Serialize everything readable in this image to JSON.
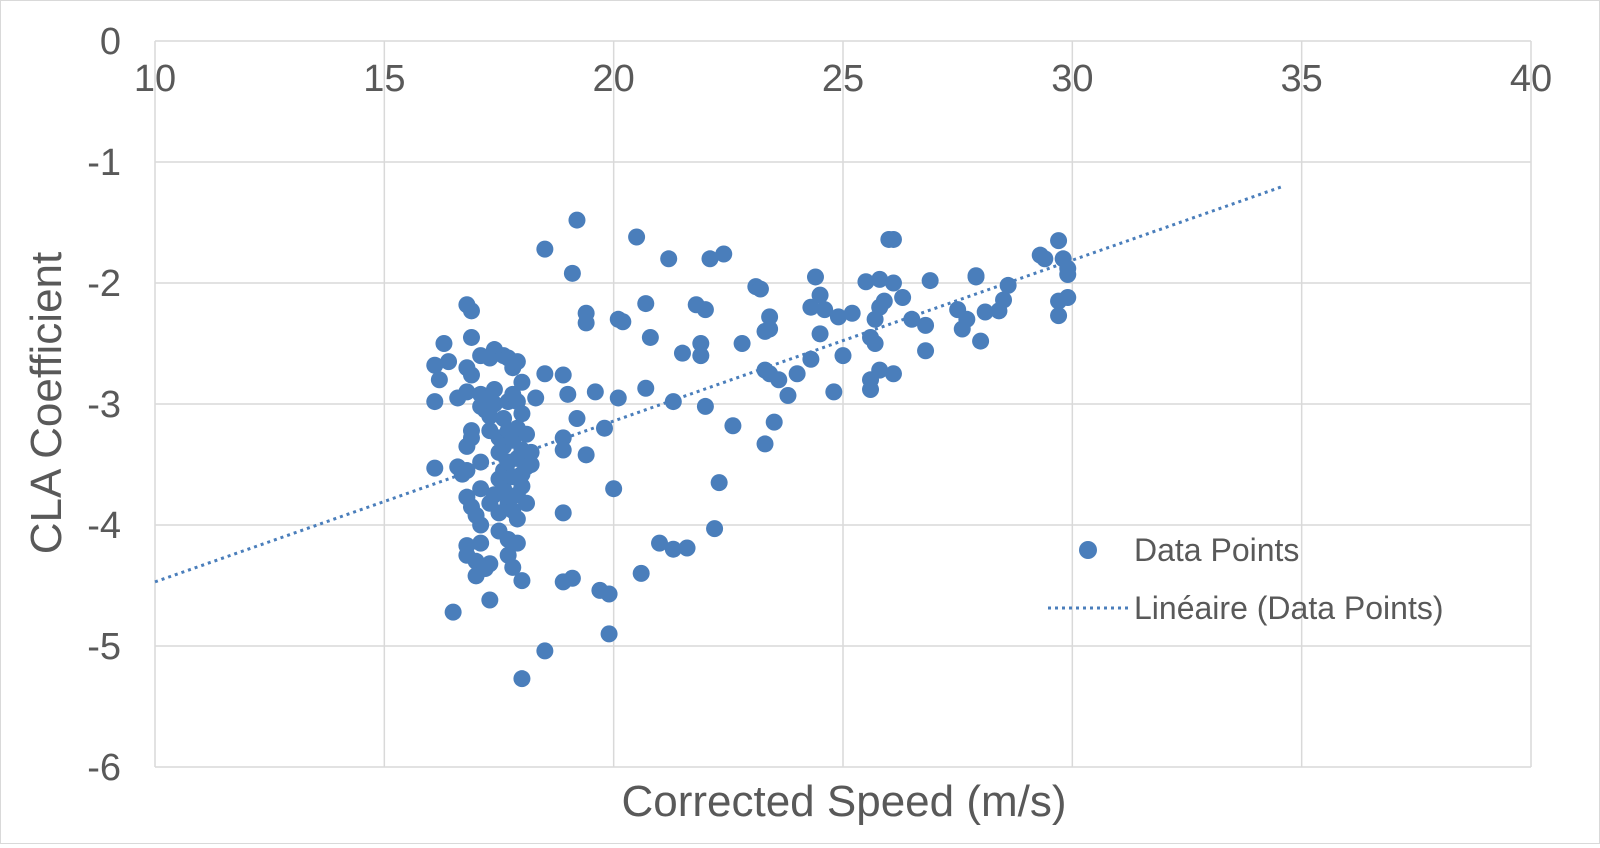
{
  "chart_data": {
    "type": "scatter",
    "xlabel": "Corrected Speed (m/s)",
    "ylabel": "CLA Coefficient",
    "xlim": [
      10,
      40
    ],
    "ylim": [
      -6,
      0
    ],
    "xticks": [
      "10",
      "15",
      "20",
      "25",
      "30",
      "35",
      "40"
    ],
    "yticks": [
      "0",
      "-1",
      "-2",
      "-3",
      "-4",
      "-5",
      "-6"
    ],
    "grid": true,
    "legend_position": "right",
    "colors": {
      "points": "#4a7ebb",
      "trendline": "#4a7ebb",
      "grid": "#d9d9d9"
    },
    "series": [
      {
        "name": "Data Points",
        "points": [
          [
            16.1,
            -2.68
          ],
          [
            16.2,
            -2.8
          ],
          [
            16.1,
            -2.98
          ],
          [
            16.3,
            -2.5
          ],
          [
            16.4,
            -2.65
          ],
          [
            16.1,
            -3.53
          ],
          [
            16.5,
            -4.72
          ],
          [
            16.6,
            -2.95
          ],
          [
            16.6,
            -3.52
          ],
          [
            16.7,
            -3.58
          ],
          [
            16.8,
            -2.18
          ],
          [
            16.9,
            -2.23
          ],
          [
            16.9,
            -2.45
          ],
          [
            16.8,
            -2.7
          ],
          [
            16.9,
            -2.76
          ],
          [
            16.8,
            -2.9
          ],
          [
            16.8,
            -3.35
          ],
          [
            16.9,
            -3.28
          ],
          [
            16.9,
            -3.22
          ],
          [
            16.8,
            -3.55
          ],
          [
            16.8,
            -3.77
          ],
          [
            16.9,
            -3.85
          ],
          [
            16.8,
            -4.17
          ],
          [
            16.8,
            -4.25
          ],
          [
            17.0,
            -4.3
          ],
          [
            17.0,
            -4.42
          ],
          [
            17.1,
            -2.6
          ],
          [
            17.1,
            -2.92
          ],
          [
            17.1,
            -3.02
          ],
          [
            17.1,
            -3.48
          ],
          [
            17.1,
            -3.7
          ],
          [
            17.0,
            -3.92
          ],
          [
            17.1,
            -4.0
          ],
          [
            17.1,
            -4.15
          ],
          [
            17.2,
            -4.36
          ],
          [
            17.2,
            -3.05
          ],
          [
            17.3,
            -2.62
          ],
          [
            17.3,
            -2.95
          ],
          [
            17.3,
            -3.1
          ],
          [
            17.3,
            -3.22
          ],
          [
            17.3,
            -3.82
          ],
          [
            17.3,
            -4.32
          ],
          [
            17.3,
            -4.62
          ],
          [
            17.4,
            -2.55
          ],
          [
            17.4,
            -2.88
          ],
          [
            17.4,
            -3.0
          ],
          [
            17.4,
            -3.75
          ],
          [
            17.5,
            -3.28
          ],
          [
            17.5,
            -3.4
          ],
          [
            17.5,
            -3.62
          ],
          [
            17.5,
            -3.9
          ],
          [
            17.5,
            -4.05
          ],
          [
            17.6,
            -2.6
          ],
          [
            17.6,
            -3.12
          ],
          [
            17.6,
            -3.35
          ],
          [
            17.6,
            -3.55
          ],
          [
            17.6,
            -3.7
          ],
          [
            17.7,
            -2.62
          ],
          [
            17.7,
            -2.98
          ],
          [
            17.7,
            -3.22
          ],
          [
            17.7,
            -3.48
          ],
          [
            17.7,
            -3.82
          ],
          [
            17.7,
            -4.12
          ],
          [
            17.7,
            -4.25
          ],
          [
            17.8,
            -2.7
          ],
          [
            17.8,
            -2.92
          ],
          [
            17.8,
            -3.3
          ],
          [
            17.8,
            -3.6
          ],
          [
            17.8,
            -3.88
          ],
          [
            17.8,
            -4.35
          ],
          [
            17.9,
            -2.65
          ],
          [
            17.9,
            -2.98
          ],
          [
            17.9,
            -3.2
          ],
          [
            17.9,
            -3.45
          ],
          [
            17.9,
            -3.75
          ],
          [
            17.9,
            -3.95
          ],
          [
            17.9,
            -4.15
          ],
          [
            18.0,
            -2.82
          ],
          [
            18.0,
            -3.08
          ],
          [
            18.0,
            -3.38
          ],
          [
            18.0,
            -3.58
          ],
          [
            18.0,
            -3.68
          ],
          [
            18.0,
            -4.46
          ],
          [
            18.0,
            -5.27
          ],
          [
            18.1,
            -3.25
          ],
          [
            18.1,
            -3.52
          ],
          [
            18.1,
            -3.82
          ],
          [
            18.2,
            -3.4
          ],
          [
            18.2,
            -3.5
          ],
          [
            18.3,
            -2.95
          ],
          [
            18.5,
            -1.72
          ],
          [
            18.5,
            -2.75
          ],
          [
            18.5,
            -5.04
          ],
          [
            18.9,
            -2.76
          ],
          [
            18.9,
            -3.28
          ],
          [
            18.9,
            -3.38
          ],
          [
            18.9,
            -3.9
          ],
          [
            18.9,
            -4.47
          ],
          [
            19.0,
            -2.92
          ],
          [
            19.1,
            -1.92
          ],
          [
            19.1,
            -4.44
          ],
          [
            19.2,
            -1.48
          ],
          [
            19.2,
            -3.12
          ],
          [
            19.4,
            -2.25
          ],
          [
            19.4,
            -2.33
          ],
          [
            19.4,
            -3.42
          ],
          [
            19.6,
            -2.9
          ],
          [
            19.7,
            -4.54
          ],
          [
            19.8,
            -3.2
          ],
          [
            19.9,
            -4.57
          ],
          [
            19.9,
            -4.9
          ],
          [
            20.0,
            -3.7
          ],
          [
            20.1,
            -2.3
          ],
          [
            20.1,
            -2.95
          ],
          [
            20.2,
            -2.32
          ],
          [
            20.5,
            -1.62
          ],
          [
            20.6,
            -4.4
          ],
          [
            20.7,
            -2.17
          ],
          [
            20.7,
            -2.87
          ],
          [
            20.8,
            -2.45
          ],
          [
            21.0,
            -4.15
          ],
          [
            21.2,
            -1.8
          ],
          [
            21.3,
            -2.98
          ],
          [
            21.3,
            -4.2
          ],
          [
            21.5,
            -2.58
          ],
          [
            21.6,
            -4.19
          ],
          [
            21.8,
            -2.18
          ],
          [
            21.9,
            -2.5
          ],
          [
            21.9,
            -2.6
          ],
          [
            22.0,
            -3.02
          ],
          [
            22.0,
            -2.22
          ],
          [
            22.1,
            -1.8
          ],
          [
            22.2,
            -4.03
          ],
          [
            22.3,
            -3.65
          ],
          [
            22.4,
            -1.76
          ],
          [
            22.6,
            -3.18
          ],
          [
            22.8,
            -2.5
          ],
          [
            23.1,
            -2.03
          ],
          [
            23.2,
            -2.05
          ],
          [
            23.3,
            -2.4
          ],
          [
            23.3,
            -2.72
          ],
          [
            23.3,
            -3.33
          ],
          [
            23.4,
            -2.28
          ],
          [
            23.4,
            -2.38
          ],
          [
            23.4,
            -2.75
          ],
          [
            23.5,
            -3.15
          ],
          [
            23.6,
            -2.8
          ],
          [
            23.8,
            -2.93
          ],
          [
            24.0,
            -2.75
          ],
          [
            24.3,
            -2.2
          ],
          [
            24.3,
            -2.63
          ],
          [
            24.4,
            -1.95
          ],
          [
            24.5,
            -2.1
          ],
          [
            24.5,
            -2.42
          ],
          [
            24.6,
            -2.22
          ],
          [
            24.8,
            -2.9
          ],
          [
            24.9,
            -2.28
          ],
          [
            25.0,
            -2.6
          ],
          [
            25.2,
            -2.25
          ],
          [
            25.5,
            -1.99
          ],
          [
            25.6,
            -2.45
          ],
          [
            25.6,
            -2.8
          ],
          [
            25.6,
            -2.88
          ],
          [
            25.7,
            -2.5
          ],
          [
            25.7,
            -2.3
          ],
          [
            25.8,
            -1.97
          ],
          [
            25.8,
            -2.2
          ],
          [
            25.9,
            -2.15
          ],
          [
            25.8,
            -2.72
          ],
          [
            26.0,
            -1.64
          ],
          [
            26.1,
            -1.64
          ],
          [
            26.1,
            -2.0
          ],
          [
            26.1,
            -2.75
          ],
          [
            26.3,
            -2.12
          ],
          [
            26.5,
            -2.3
          ],
          [
            26.8,
            -2.35
          ],
          [
            26.8,
            -2.56
          ],
          [
            26.9,
            -1.98
          ],
          [
            27.5,
            -2.22
          ],
          [
            27.6,
            -2.38
          ],
          [
            27.7,
            -2.3
          ],
          [
            27.9,
            -1.94
          ],
          [
            27.9,
            -1.95
          ],
          [
            28.0,
            -2.48
          ],
          [
            28.1,
            -2.24
          ],
          [
            28.4,
            -2.23
          ],
          [
            28.5,
            -2.14
          ],
          [
            28.6,
            -2.02
          ],
          [
            29.3,
            -1.77
          ],
          [
            29.4,
            -1.8
          ],
          [
            29.7,
            -1.65
          ],
          [
            29.7,
            -2.15
          ],
          [
            29.7,
            -2.27
          ],
          [
            29.8,
            -1.8
          ],
          [
            29.9,
            -1.88
          ],
          [
            29.9,
            -1.93
          ],
          [
            29.9,
            -2.12
          ]
        ]
      },
      {
        "name": "Linéaire (Data Points)",
        "type": "linear-trendline",
        "x": [
          10,
          34.6
        ],
        "y": [
          -4.47,
          -1.2
        ]
      }
    ]
  }
}
